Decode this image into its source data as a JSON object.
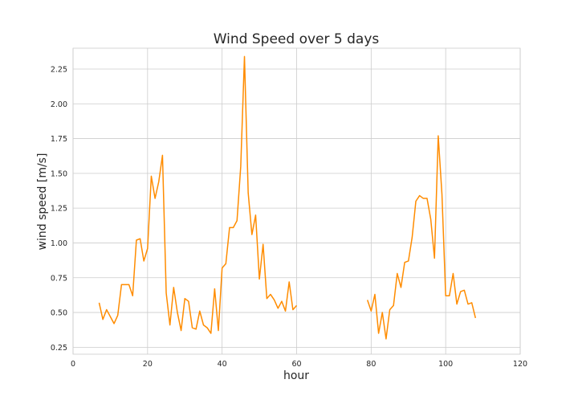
{
  "chart_data": {
    "type": "line",
    "title": "Wind Speed over 5 days",
    "xlabel": "hour",
    "ylabel": "wind speed [m/s]",
    "xlim": [
      0,
      120
    ],
    "ylim": [
      0.2,
      2.4
    ],
    "xticks": [
      0,
      20,
      40,
      60,
      80,
      100,
      120
    ],
    "yticks": [
      0.25,
      0.5,
      0.75,
      1.0,
      1.25,
      1.5,
      1.75,
      2.0,
      2.25
    ],
    "yticks_labels": [
      "0.25",
      "0.50",
      "0.75",
      "1.00",
      "1.25",
      "1.50",
      "1.75",
      "2.00",
      "2.25"
    ],
    "grid": true,
    "color": "#ff8c00",
    "series": [
      {
        "segments": [
          {
            "x": [
              7,
              8,
              9,
              10,
              11,
              12,
              13,
              14,
              15,
              16,
              17,
              18,
              19,
              20,
              21,
              22,
              23,
              24,
              25,
              26,
              27,
              28,
              29,
              30,
              31,
              32,
              33,
              34,
              35,
              36,
              37,
              38,
              39,
              40,
              41,
              42,
              43,
              44,
              45,
              46,
              47,
              48,
              49,
              50,
              51,
              52,
              53,
              54,
              55,
              56,
              57,
              58,
              59,
              60
            ],
            "y": [
              0.57,
              0.45,
              0.52,
              0.47,
              0.42,
              0.48,
              0.7,
              0.7,
              0.7,
              0.62,
              1.02,
              1.03,
              0.87,
              0.96,
              1.48,
              1.32,
              1.44,
              1.63,
              0.64,
              0.41,
              0.68,
              0.5,
              0.37,
              0.6,
              0.58,
              0.39,
              0.38,
              0.51,
              0.41,
              0.39,
              0.35,
              0.67,
              0.37,
              0.82,
              0.85,
              1.11,
              1.11,
              1.16,
              1.55,
              2.34,
              1.36,
              1.06,
              1.2,
              0.74,
              0.99,
              0.6,
              0.63,
              0.59,
              0.53,
              0.58,
              0.51,
              0.72,
              0.52,
              0.55
            ]
          },
          {
            "x": [
              79,
              80,
              81,
              82,
              83,
              84,
              85,
              86,
              87,
              88,
              89,
              90,
              91,
              92,
              93,
              94,
              95,
              96,
              97,
              98,
              99,
              100,
              101,
              102,
              103,
              104,
              105,
              106,
              107,
              108
            ],
            "y": [
              0.59,
              0.51,
              0.63,
              0.35,
              0.5,
              0.31,
              0.52,
              0.55,
              0.78,
              0.68,
              0.86,
              0.87,
              1.04,
              1.3,
              1.34,
              1.32,
              1.32,
              1.17,
              0.89,
              1.77,
              1.35,
              0.62,
              0.62,
              0.78,
              0.56,
              0.65,
              0.66,
              0.56,
              0.57,
              0.46
            ]
          }
        ]
      }
    ]
  }
}
